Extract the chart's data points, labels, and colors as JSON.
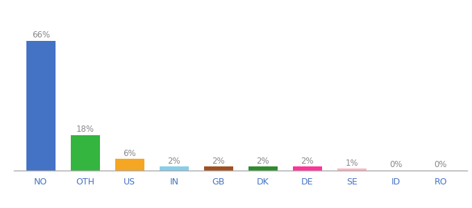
{
  "categories": [
    "NO",
    "OTH",
    "US",
    "IN",
    "GB",
    "DK",
    "DE",
    "SE",
    "ID",
    "RO"
  ],
  "values": [
    66,
    18,
    6,
    2,
    2,
    2,
    2,
    1,
    0,
    0
  ],
  "labels": [
    "66%",
    "18%",
    "6%",
    "2%",
    "2%",
    "2%",
    "2%",
    "1%",
    "0%",
    "0%"
  ],
  "bar_colors": [
    "#4472c4",
    "#33b540",
    "#f5a623",
    "#87ceeb",
    "#a05020",
    "#2e8b2e",
    "#ff3399",
    "#ffb6c1",
    "#f5f5f5",
    "#f5f5f5"
  ],
  "background_color": "#ffffff",
  "ylim": [
    0,
    74
  ],
  "label_fontsize": 8.5,
  "tick_fontsize": 9,
  "label_color": "#888888",
  "tick_color": "#4472c4",
  "bottom_spine_color": "#aaaaaa"
}
